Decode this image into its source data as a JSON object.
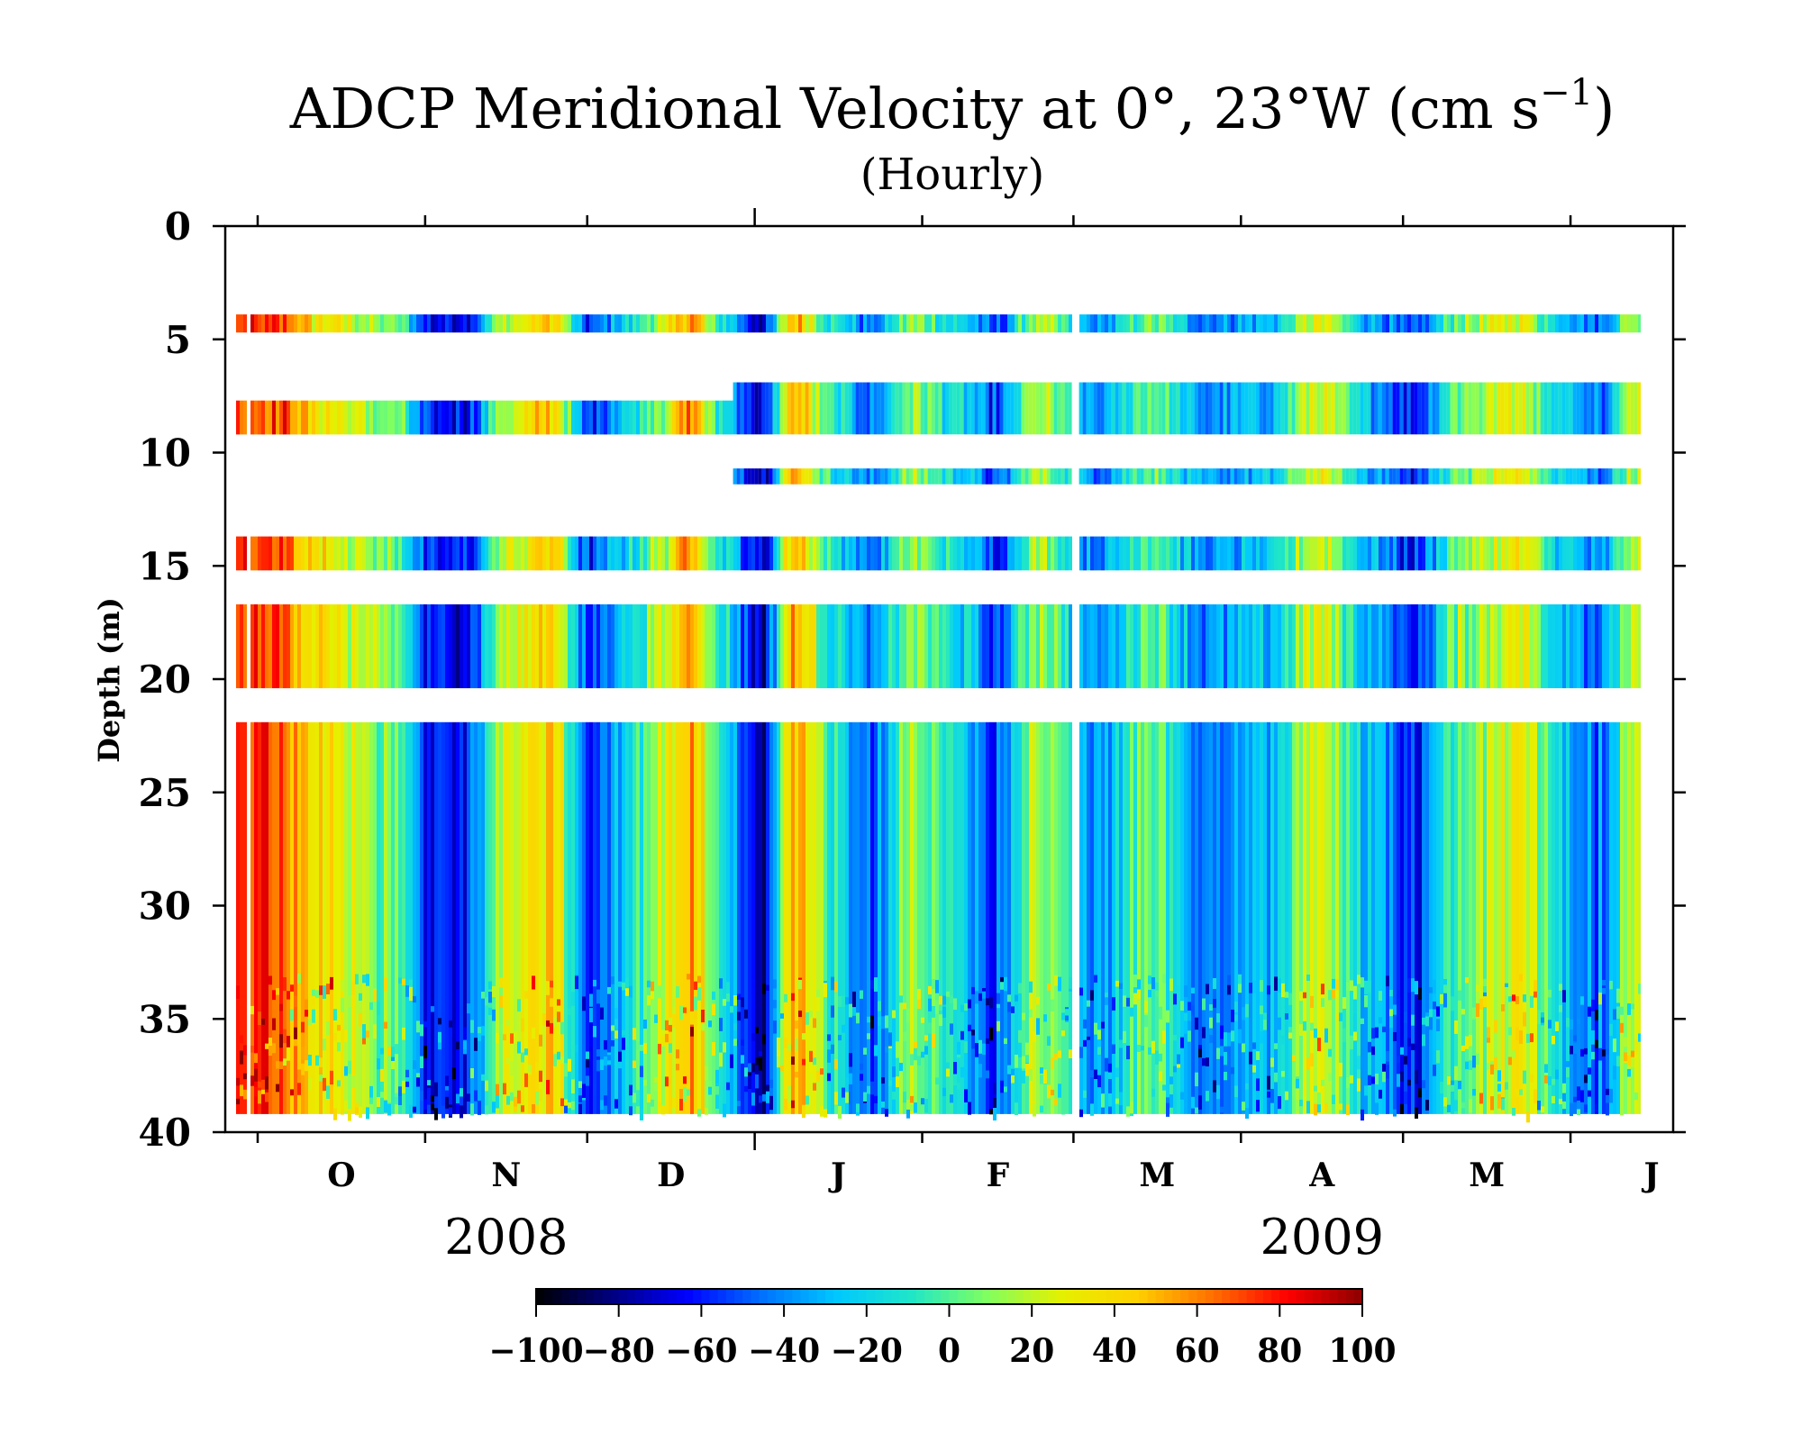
{
  "chart_data": {
    "type": "heatmap",
    "title": "ADCP Meridional Velocity at 0°, 23°W (cm s",
    "title_exponent": "−1",
    "title_close": ")",
    "subtitle": "(Hourly)",
    "ylabel": "Depth (m)",
    "ylim": [
      0,
      40
    ],
    "y_inverted": true,
    "y_ticks": [
      "0",
      "5",
      "10",
      "15",
      "20",
      "25",
      "30",
      "35",
      "40"
    ],
    "x_start": "2008-09-25",
    "x_end": "2009-06-20",
    "x_tick_labels": [
      "O",
      "N",
      "D",
      "J",
      "F",
      "M",
      "A",
      "M",
      "J"
    ],
    "x_tick_dates": [
      "2008-10-01",
      "2008-11-01",
      "2008-12-01",
      "2009-01-01",
      "2009-02-01",
      "2009-03-01",
      "2009-04-01",
      "2009-05-01",
      "2009-06-01"
    ],
    "year_labels": [
      {
        "text": "2008",
        "date": "2008-11-01"
      },
      {
        "text": "2009",
        "date": "2009-04-01"
      }
    ],
    "data_period": [
      "2008-09-27",
      "2009-06-14"
    ],
    "gap_dates": [
      "2008-09-29",
      "2009-03-01"
    ],
    "depth_bands": [
      {
        "top": 3.9,
        "bottom": 4.7,
        "start": "2008-09-27",
        "end": "2009-06-14"
      },
      {
        "top": 7.7,
        "bottom": 9.2,
        "start": "2008-09-27",
        "end": "2008-12-28"
      },
      {
        "top": 6.9,
        "bottom": 9.2,
        "start": "2008-12-28",
        "end": "2009-06-14"
      },
      {
        "top": 10.7,
        "bottom": 11.4,
        "start": "2008-12-28",
        "end": "2009-06-14"
      },
      {
        "top": 13.7,
        "bottom": 15.2,
        "start": "2008-09-27",
        "end": "2009-06-14"
      },
      {
        "top": 16.7,
        "bottom": 20.4,
        "start": "2008-09-27",
        "end": "2009-06-14"
      },
      {
        "top": 21.9,
        "bottom": 39.2,
        "start": "2008-09-27",
        "end": "2009-06-14"
      }
    ],
    "velocity_events_cm_s": [
      {
        "date": "2008-10-05",
        "v": 70
      },
      {
        "date": "2008-10-12",
        "v": 35
      },
      {
        "date": "2008-10-26",
        "v": 5
      },
      {
        "date": "2008-11-02",
        "v": -65
      },
      {
        "date": "2008-11-08",
        "v": -60
      },
      {
        "date": "2008-11-16",
        "v": 20
      },
      {
        "date": "2008-11-24",
        "v": 45
      },
      {
        "date": "2008-12-01",
        "v": -55
      },
      {
        "date": "2008-12-08",
        "v": -20
      },
      {
        "date": "2008-12-14",
        "v": 15
      },
      {
        "date": "2008-12-20",
        "v": 60
      },
      {
        "date": "2008-12-25",
        "v": -10
      },
      {
        "date": "2009-01-02",
        "v": -70
      },
      {
        "date": "2009-01-08",
        "v": 50
      },
      {
        "date": "2009-01-16",
        "v": -15
      },
      {
        "date": "2009-01-22",
        "v": -45
      },
      {
        "date": "2009-01-30",
        "v": 10
      },
      {
        "date": "2009-02-08",
        "v": -20
      },
      {
        "date": "2009-02-14",
        "v": -55
      },
      {
        "date": "2009-02-22",
        "v": 15
      },
      {
        "date": "2009-03-05",
        "v": -40
      },
      {
        "date": "2009-03-15",
        "v": 5
      },
      {
        "date": "2009-03-25",
        "v": -40
      },
      {
        "date": "2009-04-05",
        "v": -30
      },
      {
        "date": "2009-04-15",
        "v": 25
      },
      {
        "date": "2009-04-25",
        "v": -30
      },
      {
        "date": "2009-05-02",
        "v": -60
      },
      {
        "date": "2009-05-12",
        "v": 10
      },
      {
        "date": "2009-05-22",
        "v": 30
      },
      {
        "date": "2009-05-30",
        "v": -20
      },
      {
        "date": "2009-06-06",
        "v": -45
      },
      {
        "date": "2009-06-12",
        "v": 15
      }
    ],
    "colorbar": {
      "min": -100,
      "max": 100,
      "tick_labels": [
        "−100",
        "−80",
        "−60",
        "−40",
        "−20",
        "0",
        "20",
        "40",
        "60",
        "80",
        "100"
      ],
      "stops": [
        "#000000",
        "#00007f",
        "#0000ff",
        "#0070ff",
        "#00c8ff",
        "#20e6c8",
        "#80ff60",
        "#e6f000",
        "#ffd000",
        "#ff7000",
        "#ff0000",
        "#8c0000"
      ]
    },
    "grid": false
  }
}
